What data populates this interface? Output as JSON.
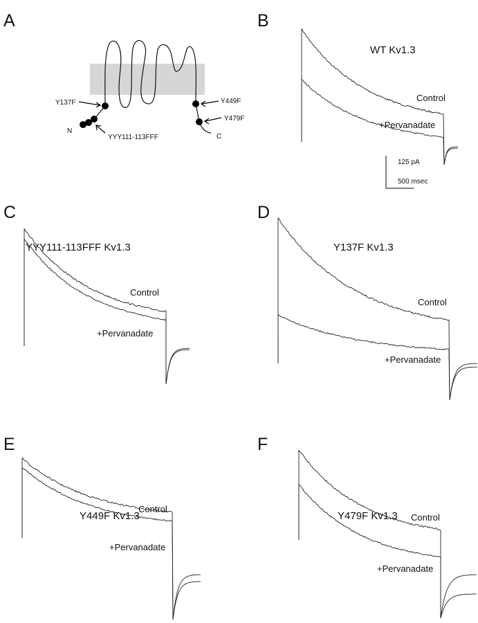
{
  "panels": [
    {
      "letter": "A",
      "labels": {
        "y137f": "Y137F",
        "y449f": "Y449F",
        "y479f": "Y479F",
        "n_term": "N",
        "c_term": "C",
        "yyy": "YYY111-113FFF"
      }
    },
    {
      "letter": "B",
      "title": "WT Kv1.3",
      "control": "Control",
      "treated": "+Pervanadate",
      "scale_current": "125 pA",
      "scale_time": "500 msec"
    },
    {
      "letter": "C",
      "title": "YYY111-113FFF Kv1.3",
      "control": "Control",
      "treated": "+Pervanadate"
    },
    {
      "letter": "D",
      "title": "Y137F Kv1.3",
      "control": "Control",
      "treated": "+Pervanadate"
    },
    {
      "letter": "E",
      "title": "Y449F Kv1.3",
      "control": "Control",
      "treated": "+Pervanadate"
    },
    {
      "letter": "F",
      "title": "Y479F Kv1.3",
      "control": "Control",
      "treated": "+Pervanadate"
    }
  ]
}
